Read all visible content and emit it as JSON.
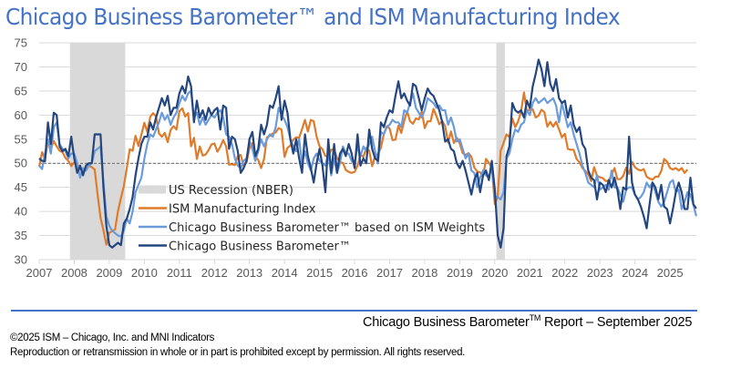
{
  "chart_data": {
    "type": "line",
    "title": "Chicago Business Barometer™ and ISM Manufacturing Index",
    "xlabel": "",
    "ylabel": "",
    "ylim": [
      30,
      75
    ],
    "yticks": [
      "75",
      "70",
      "65",
      "60",
      "55",
      "50",
      "45",
      "40",
      "35",
      "30"
    ],
    "xticks": [
      "2007",
      "2008",
      "2009",
      "2010",
      "2011",
      "2012",
      "2013",
      "2014",
      "2015",
      "2016",
      "2017",
      "2018",
      "2019",
      "2020",
      "2021",
      "2022",
      "2023",
      "2024",
      "2025"
    ],
    "x_start": "2007-01",
    "x_end": "2025-09",
    "frequency": "monthly",
    "reference_line": 50,
    "grid": true,
    "legend_position": "bottom-center-inside",
    "recessions": [
      {
        "label": "US Recession (NBER)",
        "start": "2007-12",
        "end": "2009-06"
      },
      {
        "label": "US Recession (NBER)",
        "start": "2020-02",
        "end": "2020-04"
      }
    ],
    "legend": [
      {
        "key": "recession",
        "label": "US Recession (NBER)",
        "color": "#D9D9D9"
      },
      {
        "key": "ism",
        "label": "ISM Manufacturing Index",
        "color": "#E07B2A"
      },
      {
        "key": "cbb_ism",
        "label": "Chicago Business Barometer™ based on ISM Weights",
        "color": "#6B9BDB"
      },
      {
        "key": "cbb",
        "label": "Chicago Business Barometer™",
        "color": "#24467F"
      }
    ],
    "series": [
      {
        "name": "ISM Manufacturing Index",
        "key": "ism",
        "color": "#E07B2A",
        "values": [
          49.3,
          52.3,
          50.9,
          54.7,
          53.0,
          54.6,
          53.5,
          52.6,
          52.3,
          51.1,
          50.5,
          49.4,
          50.2,
          49.8,
          48.8,
          48.3,
          48.8,
          49.5,
          49.2,
          48.7,
          43.5,
          38.7,
          36.1,
          33.1,
          35.6,
          35.9,
          36.3,
          40.1,
          42.8,
          45.3,
          48.9,
          52.9,
          52.6,
          55.7,
          53.6,
          55.9,
          58.4,
          56.5,
          59.6,
          60.4,
          59.7,
          56.2,
          55.5,
          56.3,
          54.4,
          56.9,
          57.7,
          57.0,
          60.8,
          61.4,
          59.7,
          60.4,
          53.5,
          55.3,
          50.9,
          53.5,
          51.6,
          51.8,
          52.7,
          53.9,
          54.1,
          52.4,
          53.4,
          54.8,
          53.5,
          49.7,
          49.8,
          49.6,
          51.5,
          51.7,
          49.5,
          50.2,
          53.1,
          54.2,
          51.3,
          50.7,
          49.0,
          50.9,
          55.4,
          55.7,
          56.2,
          56.4,
          57.3,
          57.0,
          51.3,
          53.2,
          53.7,
          54.9,
          55.4,
          55.3,
          57.1,
          59.0,
          56.6,
          59.0,
          58.7,
          55.5,
          53.5,
          52.9,
          51.5,
          51.5,
          52.8,
          52.8,
          51.1,
          50.2,
          50.1,
          48.6,
          48.2,
          48.0,
          48.2,
          49.5,
          51.8,
          51.3,
          53.2,
          52.6,
          49.4,
          51.5,
          51.9,
          53.2,
          56.0,
          57.7,
          57.2,
          54.8,
          54.9,
          57.8,
          56.3,
          58.8,
          60.8,
          58.7,
          58.2,
          59.3,
          59.1,
          60.8,
          57.3,
          58.7,
          58.7,
          61.3,
          59.8,
          58.1,
          58.8,
          57.7,
          54.3,
          56.6,
          54.2,
          55.3,
          54.1,
          52.1,
          51.7,
          52.1,
          51.3,
          49.1,
          48.3,
          48.1,
          47.2,
          50.9,
          50.1,
          49.1,
          41.5,
          43.1,
          52.6,
          54.2,
          56.0,
          55.4,
          59.3,
          57.5,
          58.7,
          60.8,
          64.7,
          60.7,
          61.2,
          61.2,
          59.5,
          59.9,
          61.1,
          60.6,
          57.6,
          58.6,
          57.6,
          58.6,
          57.1,
          55.4,
          56.1,
          53.0,
          52.8,
          52.8,
          50.9,
          50.2,
          49.0,
          48.4,
          47.7,
          46.3,
          49.2,
          47.4,
          47.1,
          46.9,
          46.3,
          46.4,
          47.6,
          49.0,
          46.7,
          46.7,
          47.4,
          49.1,
          47.8,
          50.3,
          49.2,
          48.7,
          48.5,
          48.8,
          47.2,
          46.8,
          46.6,
          47.2,
          47.2,
          48.4,
          50.9,
          50.3,
          49.0,
          48.7,
          49.0,
          48.5,
          49.0,
          48.0,
          48.7
        ]
      },
      {
        "name": "Chicago Business Barometer™ based on ISM Weights",
        "key": "cbb_ism",
        "color": "#6B9BDB",
        "values": [
          49.5,
          48.8,
          52.0,
          55.0,
          52.0,
          57.5,
          58.5,
          54.0,
          53.0,
          52.5,
          51.0,
          52.0,
          52.0,
          50.0,
          47.0,
          49.0,
          48.5,
          49.5,
          50.0,
          52.5,
          53.0,
          53.5,
          46.0,
          39.0,
          37.0,
          36.0,
          35.5,
          35.0,
          34.8,
          36.0,
          38.5,
          37.5,
          40.0,
          44.0,
          45.5,
          47.0,
          51.0,
          54.0,
          56.0,
          55.5,
          57.0,
          58.5,
          60.5,
          59.0,
          60.0,
          58.0,
          59.5,
          60.5,
          62.5,
          64.0,
          63.0,
          64.5,
          65.0,
          59.5,
          60.5,
          58.0,
          59.5,
          58.0,
          59.0,
          60.0,
          59.5,
          60.5,
          61.0,
          59.5,
          56.0,
          55.5,
          54.0,
          51.0,
          49.5,
          49.0,
          50.5,
          51.0,
          54.5,
          53.0,
          50.5,
          52.5,
          55.0,
          53.5,
          55.0,
          56.0,
          55.5,
          57.5,
          61.5,
          60.0,
          59.0,
          57.5,
          55.0,
          53.5,
          52.5,
          55.0,
          50.0,
          52.5,
          50.0,
          48.5,
          51.0,
          52.0,
          50.5,
          50.0,
          49.5,
          52.0,
          47.5,
          51.0,
          48.0,
          50.0,
          53.5,
          52.0,
          52.0,
          50.5,
          50.0,
          53.5,
          51.5,
          53.5,
          52.5,
          54.0,
          55.5,
          52.5,
          50.0,
          56.5,
          56.0,
          57.5,
          58.0,
          59.0,
          58.5,
          58.5,
          57.5,
          61.0,
          60.5,
          62.5,
          64.5,
          61.5,
          60.5,
          59.5,
          61.0,
          63.5,
          63.0,
          62.5,
          61.5,
          62.0,
          61.0,
          61.0,
          58.0,
          59.5,
          57.5,
          54.5,
          55.0,
          53.0,
          51.0,
          52.0,
          48.5,
          48.0,
          45.0,
          47.0,
          48.5,
          47.5,
          47.0,
          49.5,
          43.0,
          43.0,
          42.5,
          44.0,
          51.0,
          52.0,
          55.0,
          57.0,
          56.5,
          58.0,
          58.5,
          61.0,
          60.0,
          62.5,
          63.5,
          62.5,
          63.0,
          63.5,
          62.5,
          63.0,
          63.5,
          62.0,
          58.5,
          62.5,
          60.0,
          57.5,
          58.5,
          56.0,
          54.0,
          52.0,
          49.5,
          48.0,
          46.0,
          45.5,
          45.0,
          47.5,
          44.5,
          45.0,
          45.5,
          44.5,
          48.5,
          45.0,
          45.0,
          43.5,
          42.0,
          44.5,
          45.0,
          45.0,
          43.5,
          42.5,
          43.0,
          44.0,
          46.0,
          45.0,
          46.0,
          44.0,
          42.0,
          41.0,
          42.0,
          44.0,
          46.0,
          46.5,
          44.0,
          44.5,
          40.5,
          42.0,
          44.0,
          43.5,
          41.5,
          39.0
        ]
      },
      {
        "name": "Chicago Business Barometer™",
        "key": "cbb",
        "color": "#24467F",
        "values": [
          51.0,
          50.5,
          50.4,
          58.5,
          54.0,
          60.5,
          60.0,
          53.5,
          52.5,
          53.0,
          51.5,
          55.5,
          51.0,
          48.0,
          49.5,
          47.5,
          49.5,
          50.0,
          50.0,
          56.0,
          56.0,
          56.0,
          45.0,
          37.0,
          33.0,
          32.5,
          33.0,
          33.5,
          33.0,
          37.5,
          38.5,
          40.5,
          43.0,
          47.5,
          51.0,
          54.0,
          55.5,
          55.5,
          58.5,
          57.0,
          59.5,
          61.5,
          63.5,
          62.0,
          64.0,
          60.0,
          61.5,
          61.5,
          64.5,
          66.0,
          64.5,
          68.0,
          66.0,
          58.5,
          63.0,
          59.5,
          61.0,
          59.0,
          61.5,
          60.0,
          61.0,
          61.5,
          57.0,
          62.0,
          61.5,
          53.0,
          55.5,
          55.0,
          52.5,
          48.0,
          49.0,
          50.5,
          55.0,
          56.5,
          51.5,
          53.0,
          58.0,
          56.0,
          58.0,
          62.0,
          61.5,
          63.5,
          66.0,
          59.0,
          63.0,
          60.5,
          55.0,
          52.0,
          55.0,
          51.0,
          48.0,
          56.0,
          51.5,
          49.0,
          46.0,
          50.0,
          53.0,
          49.5,
          44.0,
          55.0,
          48.0,
          54.0,
          48.0,
          52.0,
          53.0,
          51.5,
          54.0,
          52.0,
          49.0,
          56.0,
          49.5,
          51.0,
          50.0,
          57.0,
          53.0,
          51.0,
          50.5,
          58.5,
          57.5,
          59.5,
          61.0,
          60.5,
          64.0,
          67.0,
          63.5,
          64.5,
          63.0,
          62.0,
          66.5,
          66.0,
          63.5,
          61.0,
          63.5,
          65.5,
          64.5,
          64.0,
          62.5,
          61.0,
          58.5,
          54.5,
          55.0,
          53.0,
          52.5,
          50.0,
          49.0,
          50.5,
          48.5,
          46.0,
          43.5,
          46.5,
          48.0,
          44.0,
          47.5,
          48.5,
          46.5,
          50.5,
          44.5,
          35.0,
          32.5,
          36.5,
          51.5,
          53.5,
          62.5,
          61.0,
          60.5,
          61.0,
          59.5,
          63.0,
          61.5,
          66.0,
          68.5,
          71.5,
          69.5,
          66.0,
          71.0,
          66.5,
          65.0,
          67.5,
          63.5,
          62.5,
          63.0,
          59.5,
          62.0,
          58.0,
          56.5,
          57.5,
          54.0,
          53.0,
          48.5,
          47.0,
          46.5,
          42.5,
          46.0,
          45.5,
          44.0,
          46.5,
          45.0,
          47.0,
          44.5,
          40.5,
          45.0,
          44.5,
          55.5,
          46.0,
          43.5,
          42.5,
          41.0,
          39.0,
          36.5,
          41.5,
          46.0,
          45.0,
          42.5,
          45.5,
          41.0,
          40.5,
          37.5,
          40.5,
          44.0,
          46.0,
          44.0,
          40.5,
          40.5,
          47.0,
          41.5,
          40.6
        ]
      }
    ]
  },
  "footer": {
    "report_prefix": "Chicago Business Barometer",
    "report_tm": "TM",
    "report_suffix": " Report – September 2025",
    "copyright": "©2025 ISM – Chicago, Inc. and MNI Indicators",
    "rights": "Reproduction or retransmission in whole or in part is prohibited except by permission. All rights reserved."
  }
}
